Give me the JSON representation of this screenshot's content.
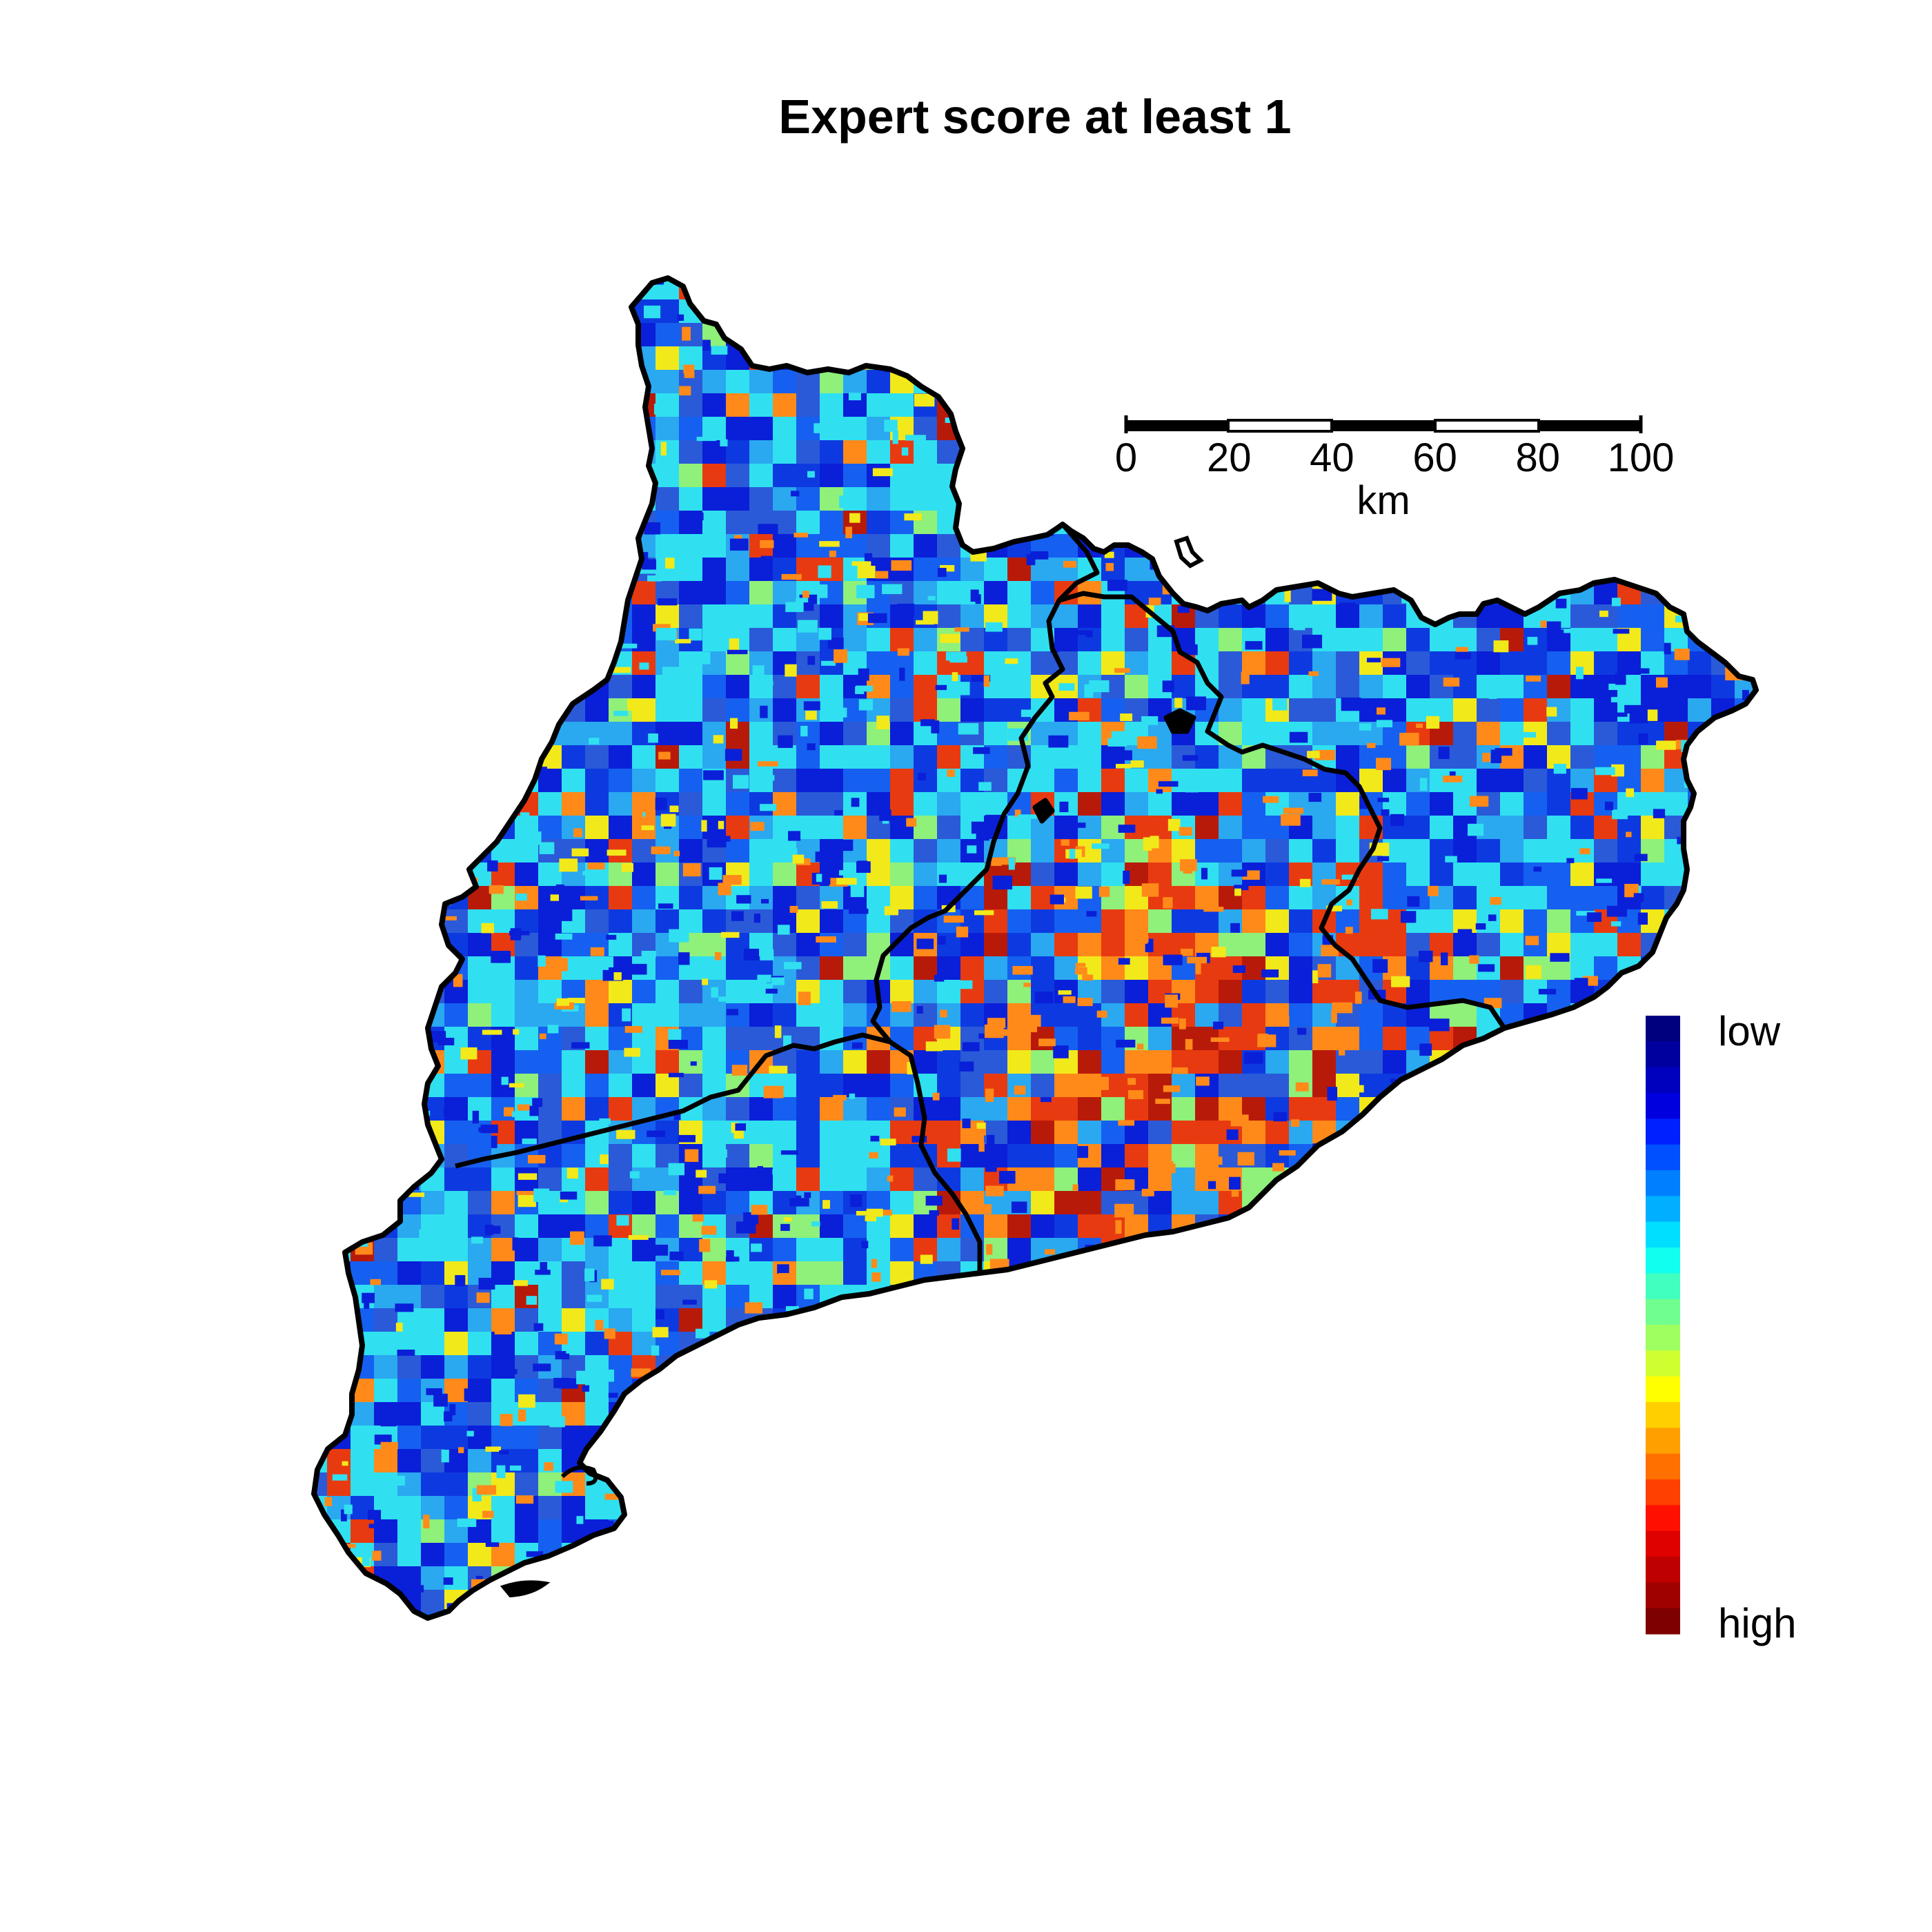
{
  "title": "Expert score at least 1",
  "scale_bar": {
    "ticks": [
      "0",
      "20",
      "40",
      "60",
      "80",
      "100"
    ],
    "unit": "km"
  },
  "legend": {
    "low_label": "low",
    "high_label": "high",
    "colors": [
      "#00007F",
      "#00009F",
      "#0000BF",
      "#0000DF",
      "#0020FF",
      "#0050FF",
      "#0080FF",
      "#00AFFF",
      "#00DFFF",
      "#10FFEF",
      "#40FFBF",
      "#70FF8F",
      "#A0FF60",
      "#CFFF30",
      "#FFFF00",
      "#FFCF00",
      "#FFA000",
      "#FF7000",
      "#FF4000",
      "#FF1000",
      "#DF0000",
      "#BF0000",
      "#9F0000",
      "#7F0000"
    ]
  },
  "map": {
    "region_colors": [
      "#0a1fd8",
      "#1560f0",
      "#2aa8f0",
      "#0d3ae0",
      "#30e0f0",
      "#2a5ad8",
      "#f2e91a",
      "#ff8a1a",
      "#e83a10",
      "#b81a0a",
      "#8ff07a"
    ]
  }
}
